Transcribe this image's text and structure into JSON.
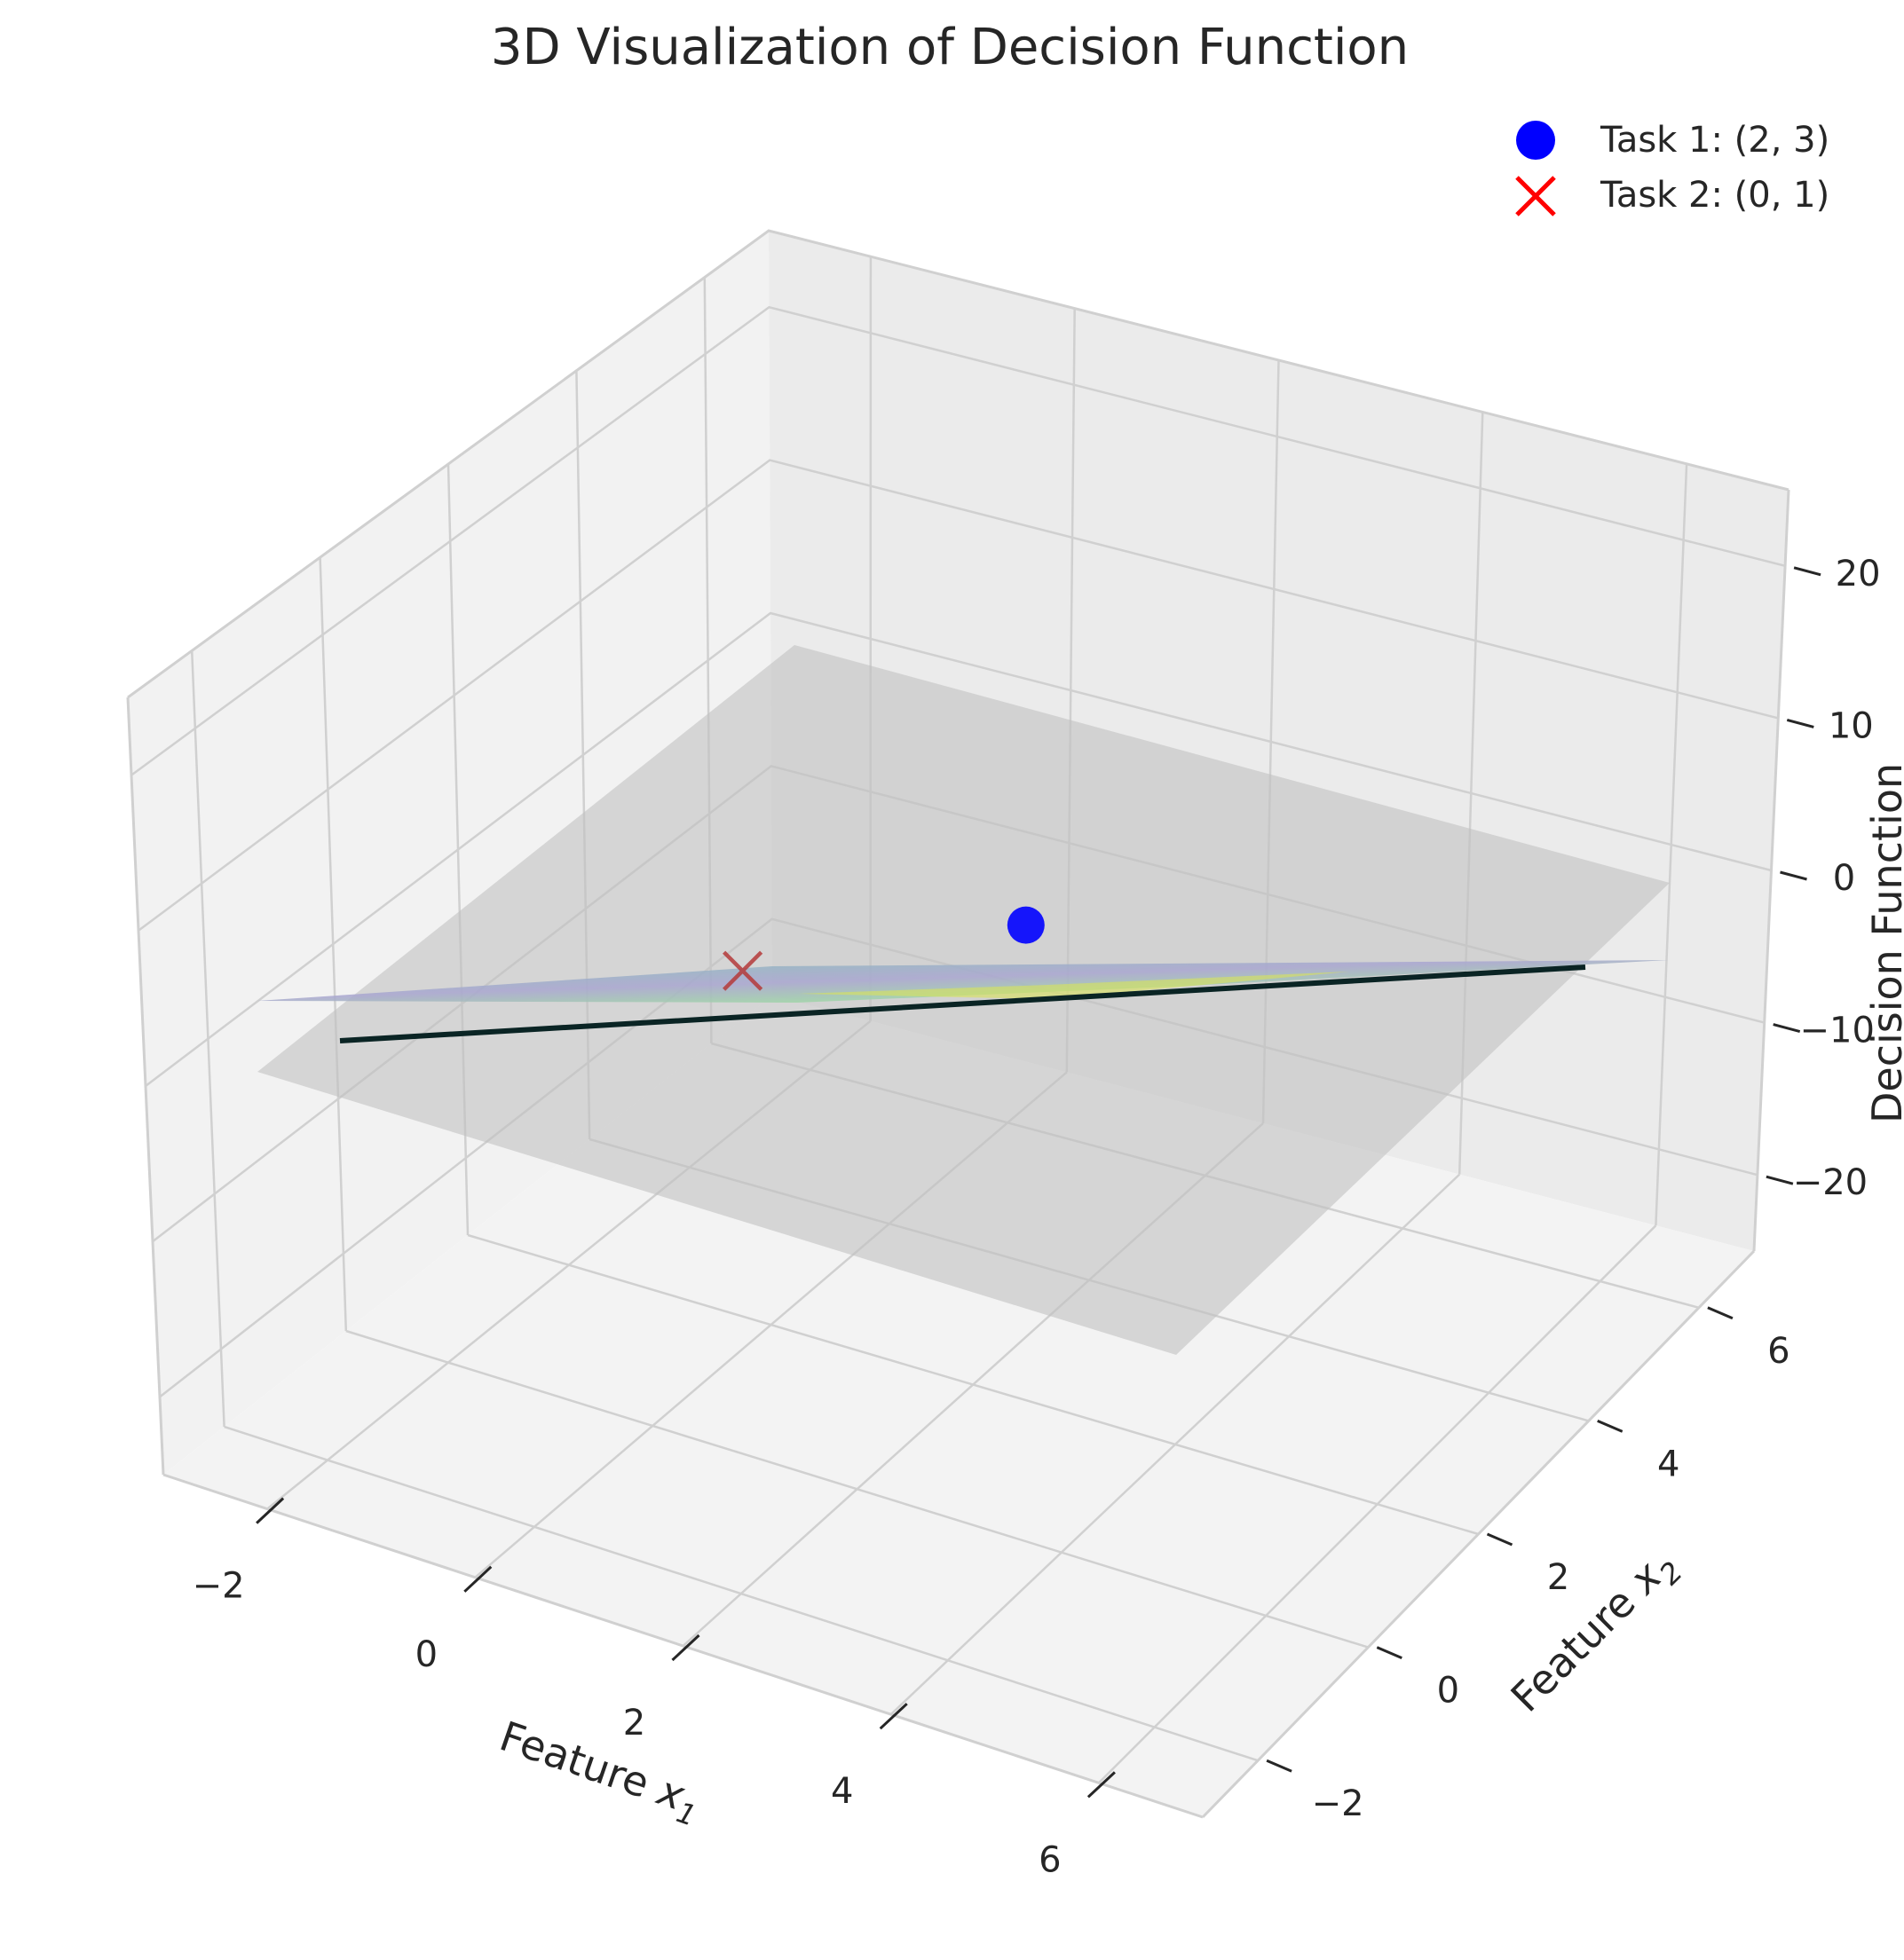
{
  "chart_data": {
    "type": "surface3d",
    "title": "3D Visualization of Decision Function",
    "xlabel_text": "Feature ",
    "xlabel_var": "x",
    "xlabel_sub": "1",
    "ylabel_text": "Feature ",
    "ylabel_var": "x",
    "ylabel_sub": "2",
    "zlabel": "Decision Function",
    "x_ticks": [
      "−2",
      "0",
      "2",
      "4",
      "6"
    ],
    "y_ticks": [
      "−2",
      "0",
      "2",
      "4",
      "6"
    ],
    "z_ticks": [
      "20",
      "10",
      "0",
      "−10",
      "−20"
    ],
    "xlim": [
      -3,
      7
    ],
    "ylim": [
      -3,
      7
    ],
    "zlim": [
      -25,
      25
    ],
    "grid": true,
    "legend_position": "top-right",
    "series": [
      {
        "name": "Task 1: (2, 3)",
        "marker": "circle",
        "color": "#0000ff",
        "x": 2,
        "y": 3
      },
      {
        "name": "Task 2: (0, 1)",
        "marker": "x",
        "color": "#ff0000",
        "x": 0,
        "y": 1
      }
    ],
    "reference_plane": {
      "z": 0,
      "color": "#bdbdbd"
    },
    "decision_surface": {
      "colormap": "viridis"
    }
  }
}
